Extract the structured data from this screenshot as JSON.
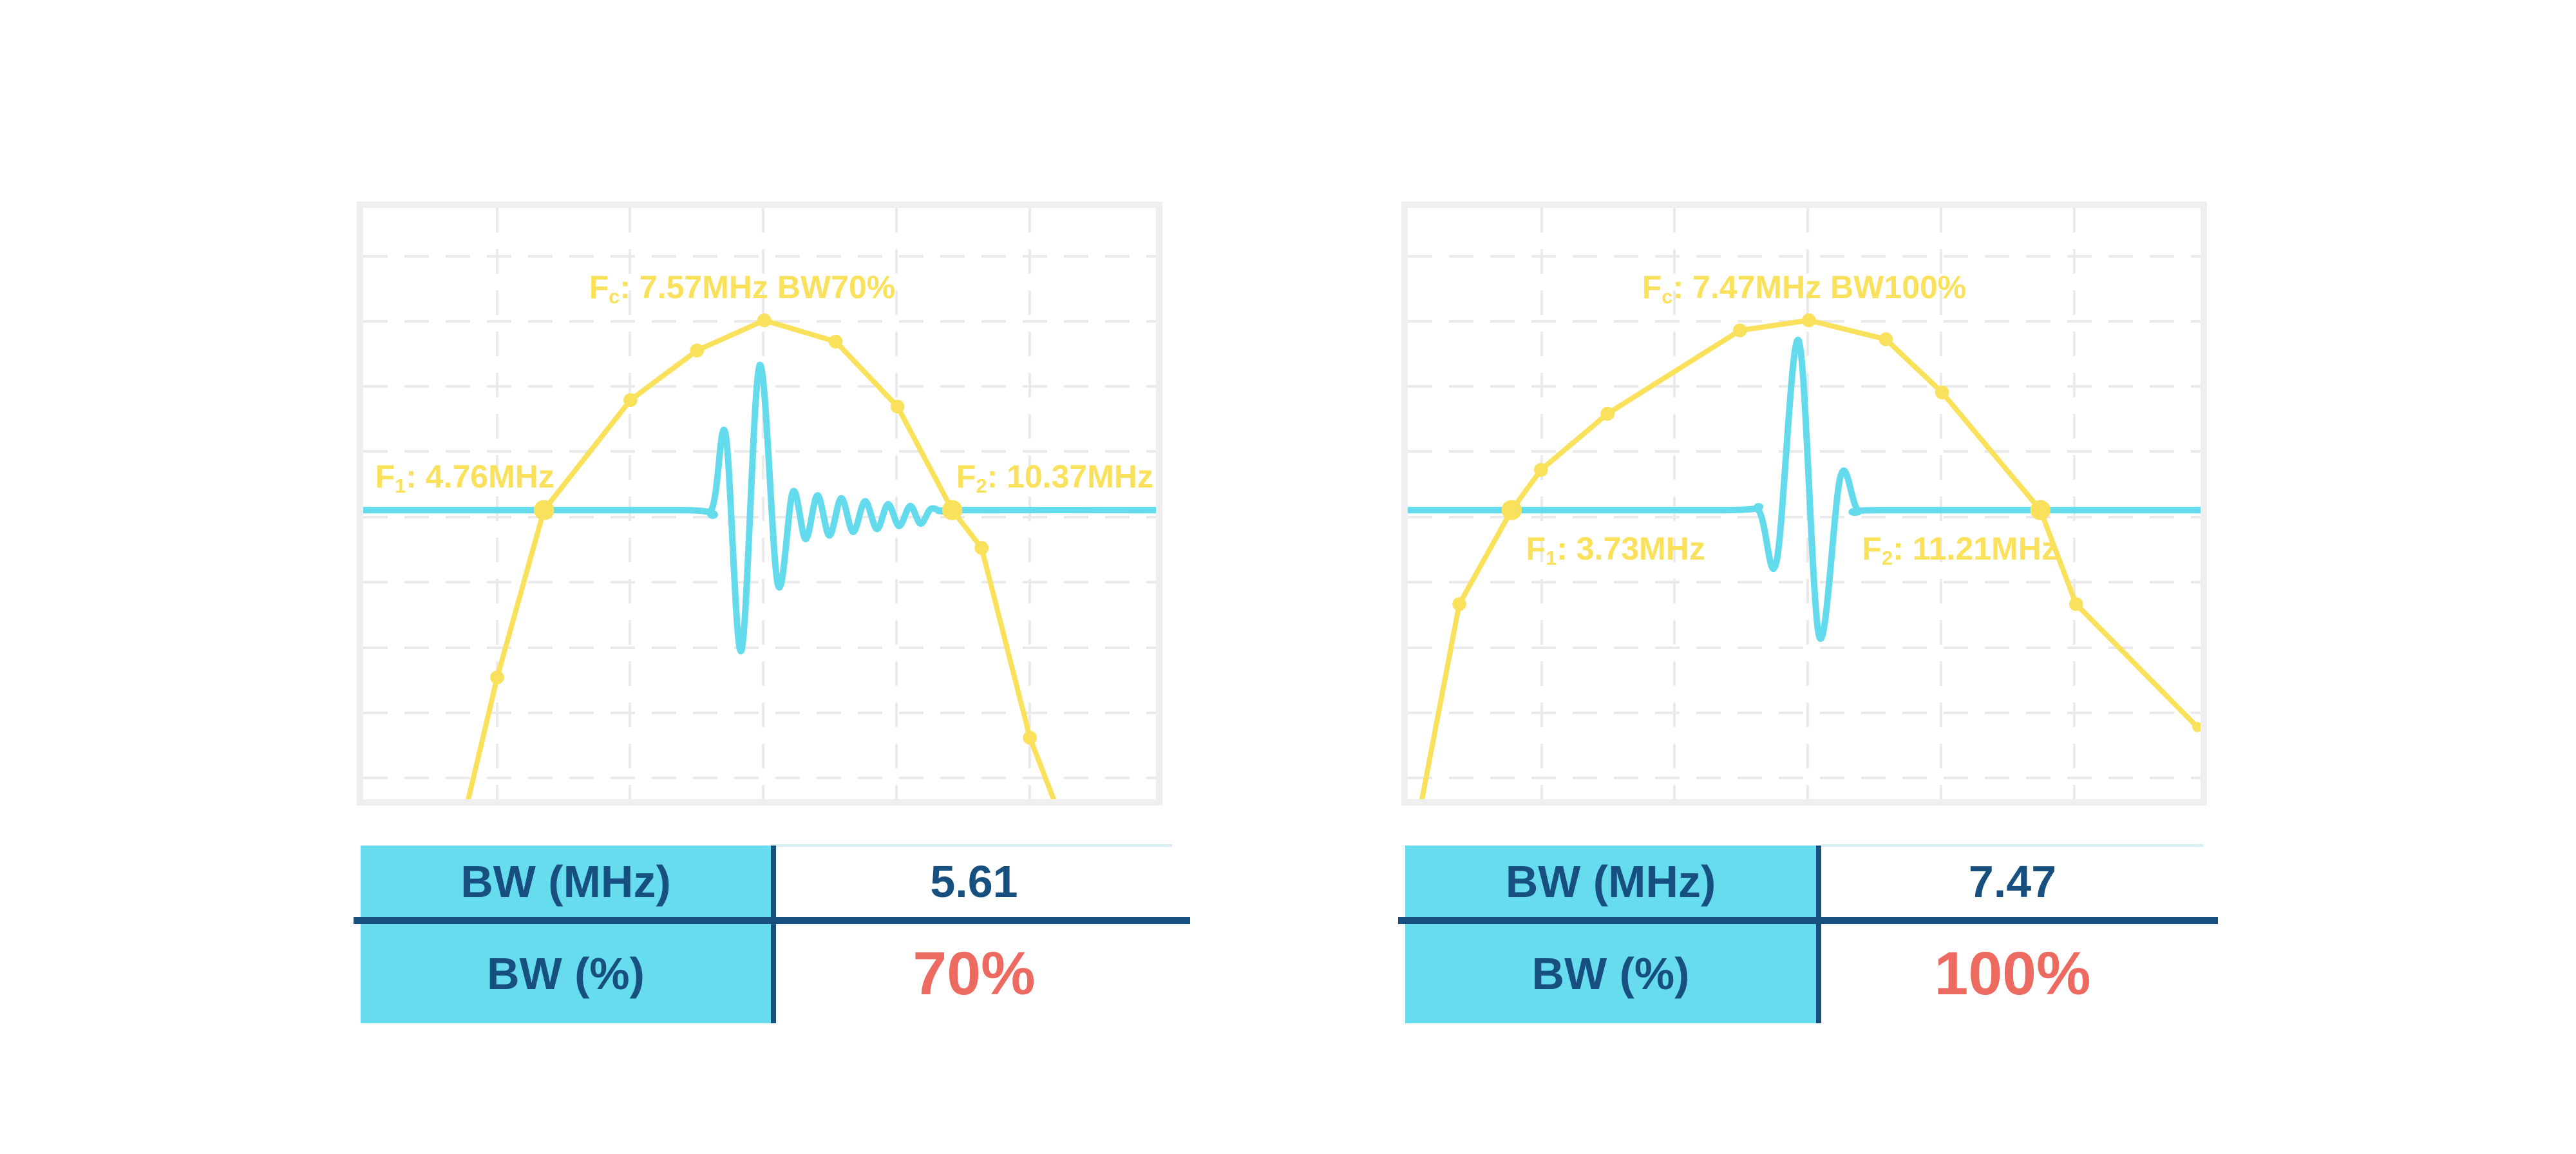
{
  "colors": {
    "yellow": "#FAE15C",
    "cyan": "#63DBEC",
    "table_fill": "#66DCEE",
    "navy": "#17507F",
    "red": "#ED6A61",
    "frame": "#EFEFEF",
    "grid": "#EAEAEA",
    "value_topline": "#D7EEF6",
    "background": "#FFFFFF"
  },
  "chart_data": [
    {
      "name": "pulse-spectrum-bw70",
      "type": "line",
      "axes_visible": false,
      "fc_mhz": 7.57,
      "f1_mhz": 4.76,
      "f2_mhz": 10.37,
      "bw_mhz": 5.61,
      "bw_percent": 70,
      "baseline_y_pct": 51.1,
      "annotations": {
        "fc": {
          "f": "F",
          "sub": "c",
          "rest": ": 7.57MHz BW70%"
        },
        "f1": {
          "f": "F",
          "sub": "1",
          "rest": ": 4.76MHz"
        },
        "f2": {
          "f": "F",
          "sub": "2",
          "rest": ": 10.37MHz"
        }
      },
      "grid": {
        "v": [
          16.7,
          33.5,
          50.3,
          67.1,
          83.9
        ],
        "h": [
          7.9,
          19,
          30,
          41,
          52.1,
          63.1,
          74.2,
          85.2,
          96.2
        ]
      },
      "series": [
        {
          "name": "spectrum",
          "color": "yellow",
          "width": 8,
          "smooth": false,
          "points": [
            [
              12.2,
              106
            ],
            [
              16.9,
              79.4
            ],
            [
              22.8,
              51.1
            ],
            [
              33.7,
              32.5
            ],
            [
              42.1,
              24.1
            ],
            [
              50.6,
              19
            ],
            [
              59.6,
              22.6
            ],
            [
              67.4,
              33.6
            ],
            [
              74.3,
              51.1
            ],
            [
              78,
              57.5
            ],
            [
              84.1,
              89.6
            ],
            [
              88.8,
              106
            ]
          ],
          "markers": [
            {
              "x": 16.9,
              "y": 79.4,
              "s": "med"
            },
            {
              "x": 22.8,
              "y": 51.1,
              "s": "big"
            },
            {
              "x": 33.7,
              "y": 32.5,
              "s": "med"
            },
            {
              "x": 42.1,
              "y": 24.1,
              "s": "med"
            },
            {
              "x": 50.6,
              "y": 19,
              "s": "med"
            },
            {
              "x": 59.6,
              "y": 22.6,
              "s": "med"
            },
            {
              "x": 67.4,
              "y": 33.6,
              "s": "med"
            },
            {
              "x": 74.3,
              "y": 51.1,
              "s": "big"
            },
            {
              "x": 78,
              "y": 57.5,
              "s": "med"
            },
            {
              "x": 84.1,
              "y": 89.6,
              "s": "med"
            }
          ]
        },
        {
          "name": "pulse-echo",
          "color": "cyan",
          "width": 10,
          "smooth": true,
          "points": [
            [
              0,
              51.1
            ],
            [
              40,
              51.1
            ],
            [
              43.9,
              51.1
            ],
            [
              45.7,
              38.2
            ],
            [
              47.7,
              74.9
            ],
            [
              50,
              26.6
            ],
            [
              52.3,
              63.7
            ],
            [
              54.2,
              48
            ],
            [
              55.8,
              56
            ],
            [
              57.3,
              48.6
            ],
            [
              58.8,
              55.4
            ],
            [
              60.3,
              49.1
            ],
            [
              61.8,
              54.8
            ],
            [
              63.3,
              49.6
            ],
            [
              64.8,
              54.3
            ],
            [
              66.2,
              50.1
            ],
            [
              67.6,
              53.8
            ],
            [
              69,
              50.4
            ],
            [
              70.3,
              53.4
            ],
            [
              71.6,
              50.9
            ],
            [
              73,
              51.3
            ],
            [
              75,
              51.1
            ],
            [
              100,
              51.1
            ]
          ],
          "markers": []
        }
      ],
      "table": {
        "rows": [
          {
            "label": "BW (MHz)",
            "value": "5.61"
          },
          {
            "label": "BW (%)",
            "value": "70%"
          }
        ]
      }
    },
    {
      "name": "pulse-spectrum-bw100",
      "type": "line",
      "axes_visible": false,
      "fc_mhz": 7.47,
      "f1_mhz": 3.73,
      "f2_mhz": 11.21,
      "bw_mhz": 7.47,
      "bw_percent": 100,
      "baseline_y_pct": 51.1,
      "annotations": {
        "fc": {
          "f": "F",
          "sub": "c",
          "rest": ": 7.47MHz BW100%"
        },
        "f1": {
          "f": "F",
          "sub": "1",
          "rest": ": 3.73MHz"
        },
        "f2": {
          "f": "F",
          "sub": "2",
          "rest": ": 11.21MHz"
        }
      },
      "grid": {
        "v": [
          16.7,
          33.5,
          50.3,
          67.1,
          83.9
        ],
        "h": [
          7.9,
          19,
          30,
          41,
          52.1,
          63.1,
          74.2,
          85.2,
          96.2
        ]
      },
      "series": [
        {
          "name": "spectrum",
          "color": "yellow",
          "width": 8,
          "smooth": false,
          "points": [
            [
              0.8,
              107
            ],
            [
              6.5,
              67
            ],
            [
              13.1,
              51.1
            ],
            [
              16.8,
              44.3
            ],
            [
              25.2,
              34.8
            ],
            [
              41.9,
              20.7
            ],
            [
              50.6,
              19
            ],
            [
              60.3,
              22.2
            ],
            [
              67.4,
              31.2
            ],
            [
              79.8,
              51.1
            ],
            [
              84.3,
              67
            ],
            [
              99.6,
              87.8
            ]
          ],
          "markers": [
            {
              "x": 6.5,
              "y": 67,
              "s": "med"
            },
            {
              "x": 13.1,
              "y": 51.1,
              "s": "big"
            },
            {
              "x": 16.8,
              "y": 44.3,
              "s": "med"
            },
            {
              "x": 25.2,
              "y": 34.8,
              "s": "med"
            },
            {
              "x": 41.9,
              "y": 20.7,
              "s": "med"
            },
            {
              "x": 50.6,
              "y": 19,
              "s": "med"
            },
            {
              "x": 60.3,
              "y": 22.2,
              "s": "med"
            },
            {
              "x": 67.4,
              "y": 31.2,
              "s": "med"
            },
            {
              "x": 79.8,
              "y": 51.1,
              "s": "big"
            },
            {
              "x": 84.3,
              "y": 67,
              "s": "med"
            },
            {
              "x": 99.6,
              "y": 87.8,
              "s": "small"
            }
          ]
        },
        {
          "name": "pulse-echo",
          "color": "cyan",
          "width": 10,
          "smooth": true,
          "points": [
            [
              0,
              51.1
            ],
            [
              40,
              51.1
            ],
            [
              44.2,
              51.1
            ],
            [
              46.5,
              59.9
            ],
            [
              49.3,
              22.4
            ],
            [
              51.9,
              72.5
            ],
            [
              54.6,
              45.3
            ],
            [
              56.8,
              51.1
            ],
            [
              60,
              51.1
            ],
            [
              100,
              51.1
            ]
          ],
          "markers": []
        }
      ],
      "table": {
        "rows": [
          {
            "label": "BW (MHz)",
            "value": "7.47"
          },
          {
            "label": "BW (%)",
            "value": "100%"
          }
        ]
      }
    }
  ]
}
